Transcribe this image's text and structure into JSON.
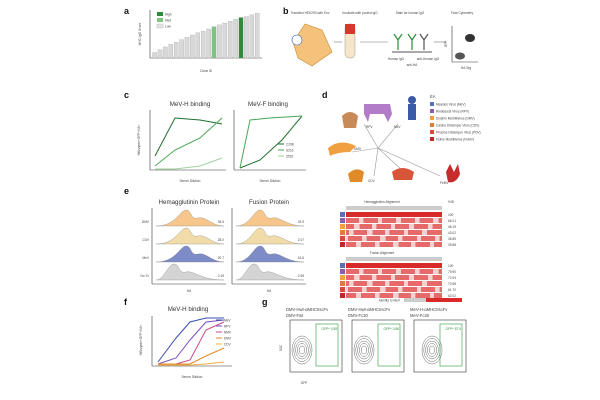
{
  "panels": {
    "a": {
      "label": "a",
      "legend": [
        "High",
        "Med",
        "Low"
      ],
      "ylabel": "MHC-IgG Score",
      "xlabel": "Clone ID",
      "colors": {
        "high": "#2e8b3a",
        "med": "#7cc47f",
        "low": "#d8d8d8"
      },
      "bars": [
        0.12,
        0.18,
        0.24,
        0.3,
        0.34,
        0.4,
        0.45,
        0.5,
        0.55,
        0.58,
        0.63,
        0.68,
        0.72,
        0.76,
        0.8,
        0.84,
        0.88,
        0.9,
        0.94,
        0.97
      ],
      "med_index": 11,
      "high_index": 16
    },
    "b": {
      "label": "b",
      "steps": [
        "Transfect HEK293 with Env",
        "Incubate with pooled IgG",
        "Stain for human IgG",
        "Flow Cytometry"
      ],
      "antibody_labels": [
        "Human IgG",
        "anti-HA",
        "anti-Human IgG"
      ],
      "flow_axes": {
        "y": "GFP",
        "x": "HA Tag"
      }
    },
    "c": {
      "label": "c",
      "left_title": "MeV-H binding",
      "right_title": "MeV-F binding",
      "ylabel": "%Enzyme+GFP+HA+",
      "xlabel": "Serum Dilution",
      "legend": [
        "C298",
        "S216",
        "Z532"
      ]
    },
    "d": {
      "label": "d",
      "legend_title": "EA",
      "legend_items": [
        "Measles Virus (MeV)",
        "Rinderpest Virus (RPV)",
        "Dolphin Morbillivirus (DMV)",
        "Canine Distemper Virus (CDV)",
        "Phocine Distemper Virus (PDV)",
        "Feline Morbillivirus (FeMV)"
      ],
      "legend_colors": [
        "#5a6fb5",
        "#8a5fb0",
        "#f0a040",
        "#e07b39",
        "#d94a3a",
        "#c02828"
      ],
      "tree_labels": [
        "RPV",
        "MeV",
        "DMV",
        "CDV",
        "PDV",
        "FeMV",
        "1 kb"
      ]
    },
    "e": {
      "label": "e",
      "left_title": "Hemagglutinin Protein",
      "right_title": "Fusion Protein",
      "rows": [
        "DMV",
        "CDV",
        "MeV",
        "No Tx"
      ],
      "xlabel": "HA",
      "left_pct": [
        "35.5",
        "28.0",
        "20.7",
        "0.19"
      ],
      "right_pct": [
        "23.9",
        "2.07",
        "16.6",
        "0.95"
      ],
      "alignment_titles": [
        "Hemagglutinin Alignment",
        "Fusion Alignment"
      ],
      "pct_header": "%ID",
      "ha_identity": [
        "100",
        "66.21",
        "46.19",
        "43.02",
        "36.89",
        "39.88"
      ],
      "f_identity": [
        "100",
        "79.90",
        "72.09",
        "70.58",
        "61.70",
        "62.02"
      ],
      "scale_label": "Identity to MeV",
      "colors": {
        "DMV": "#f5c080",
        "CDV": "#f0d8a0",
        "MeV": "#6f7fc0",
        "NoTx": "#cfcfcf"
      }
    },
    "f": {
      "label": "f",
      "title": "MeV-H binding",
      "ylabel": "%Enzyme+GFP+HA+",
      "xlabel": "Serum Dilution",
      "legend": [
        "MeV",
        "RPV",
        "NMV",
        "DMV",
        "CDV"
      ],
      "legend_colors": [
        "#3a4fb0",
        "#7a4fc0",
        "#c84a8a",
        "#e08a2a",
        "#f0b040"
      ]
    },
    "g": {
      "label": "g",
      "plots": [
        {
          "title_line1": "DMV-Hwt-αMHCII",
          "sup": "scFv",
          "title_line2": "DMV-Fwt",
          "gate": "GFP+ 0.55"
        },
        {
          "title_line1": "DMV-Hwt-αMHCII",
          "sup": "scFv",
          "title_line2": "DMV-Fc30",
          "gate": "GFP+ 0.86"
        },
        {
          "title_line1": "MeV-H-αMHCII",
          "sup": "scFv",
          "title_line2": "MeV-Fc30",
          "gate": "GFP+ 87.5"
        }
      ],
      "ylabel": "SSC",
      "xlabel": "GFP"
    }
  }
}
